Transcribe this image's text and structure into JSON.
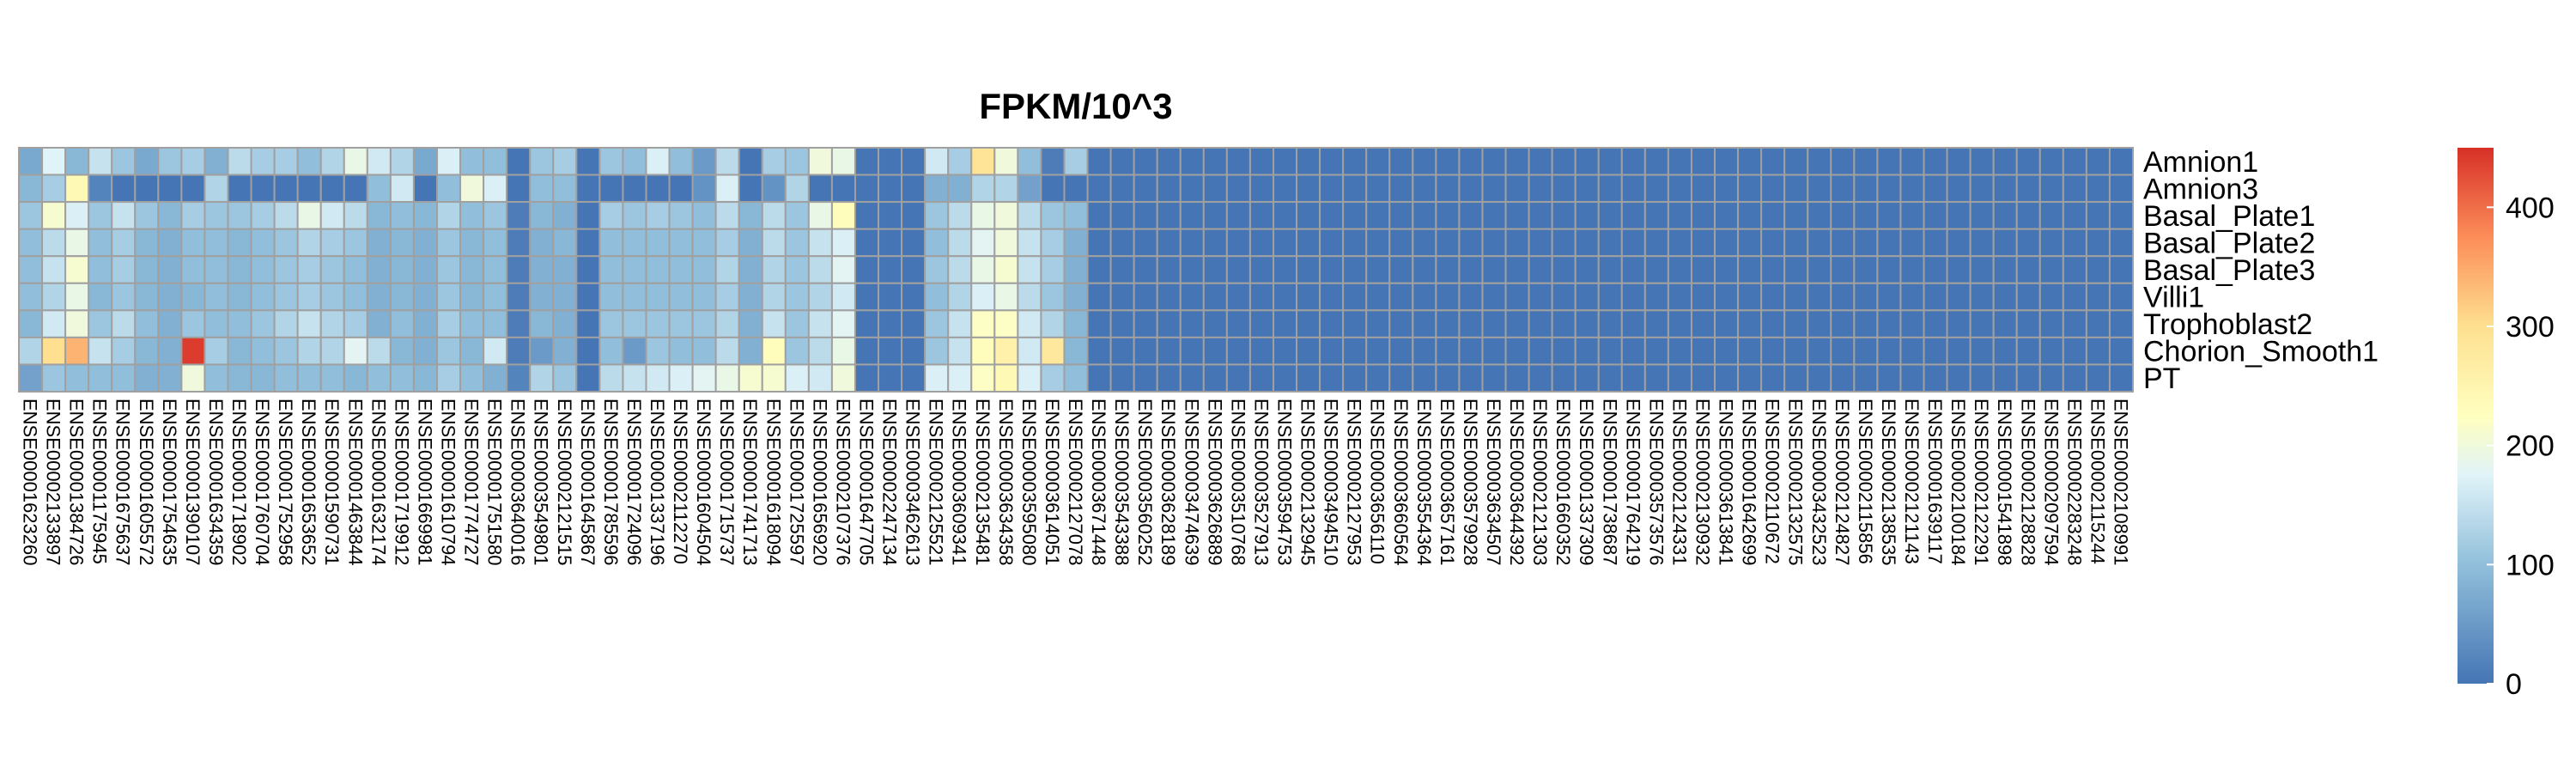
{
  "chart_data": {
    "type": "heatmap",
    "title": "FPKM/10^3",
    "rows": [
      "Amnion1",
      "Amnion3",
      "Basal_Plate1",
      "Basal_Plate2",
      "Basal_Plate3",
      "Villi1",
      "Trophoblast2",
      "Chorion_Smooth1",
      "PT"
    ],
    "columns": [
      "ENSE00001623260",
      "ENSE00002133897",
      "ENSE00001384726",
      "ENSE00001175945",
      "ENSE00001675637",
      "ENSE00001605572",
      "ENSE00001754635",
      "ENSE00001390107",
      "ENSE00001634359",
      "ENSE00001718902",
      "ENSE00001760704",
      "ENSE00001752958",
      "ENSE00001653652",
      "ENSE00001590731",
      "ENSE00001463844",
      "ENSE00001632174",
      "ENSE00001719912",
      "ENSE00001669981",
      "ENSE00001610794",
      "ENSE00001774727",
      "ENSE00001751580",
      "ENSE00003640016",
      "ENSE00003549801",
      "ENSE00002121515",
      "ENSE00001645867",
      "ENSE00001785596",
      "ENSE00001724096",
      "ENSE00001337196",
      "ENSE00002112270",
      "ENSE00001604504",
      "ENSE00001715737",
      "ENSE00001741713",
      "ENSE00001618094",
      "ENSE00001725597",
      "ENSE00001656920",
      "ENSE00002107376",
      "ENSE00001647705",
      "ENSE00002247134",
      "ENSE00003462613",
      "ENSE00002125521",
      "ENSE00003609341",
      "ENSE00002135481",
      "ENSE00003634358",
      "ENSE00003595080",
      "ENSE00003614051",
      "ENSE00002127078",
      "ENSE00003671448",
      "ENSE00003543388",
      "ENSE00003560252",
      "ENSE00003628189",
      "ENSE00003474639",
      "ENSE00003626889",
      "ENSE00003510768",
      "ENSE00003527913",
      "ENSE00003594753",
      "ENSE00002132945",
      "ENSE00003494510",
      "ENSE00002127953",
      "ENSE00003656110",
      "ENSE00003660564",
      "ENSE00003554364",
      "ENSE00003657161",
      "ENSE00003579928",
      "ENSE00003634507",
      "ENSE00003644392",
      "ENSE00002121303",
      "ENSE00001660352",
      "ENSE00001337309",
      "ENSE00001738687",
      "ENSE00001764219",
      "ENSE00003573576",
      "ENSE00002124331",
      "ENSE00002130932",
      "ENSE00003613841",
      "ENSE00001642699",
      "ENSE00002110672",
      "ENSE00002132575",
      "ENSE00003432523",
      "ENSE00002124827",
      "ENSE00002115856",
      "ENSE00002138535",
      "ENSE00002121143",
      "ENSE00001639117",
      "ENSE00002100184",
      "ENSE00002122291",
      "ENSE00001541898",
      "ENSE00002128828",
      "ENSE00002097594",
      "ENSE00002283248",
      "ENSE00002115244",
      "ENSE00002108991"
    ],
    "values": [
      [
        70,
        175,
        90,
        150,
        110,
        70,
        110,
        120,
        80,
        140,
        120,
        120,
        100,
        130,
        190,
        160,
        130,
        70,
        170,
        100,
        100,
        0,
        110,
        120,
        0,
        110,
        100,
        170,
        100,
        50,
        140,
        0,
        120,
        110,
        200,
        190,
        0,
        0,
        0,
        160,
        120,
        290,
        200,
        100,
        10,
        120,
        0,
        0,
        0,
        0,
        0,
        0,
        0,
        0,
        0,
        0,
        0,
        0,
        0,
        0,
        0,
        0,
        0,
        0,
        0,
        0,
        0,
        0,
        0,
        0,
        0,
        0,
        0,
        0,
        0,
        0,
        0,
        0,
        0,
        0,
        0,
        0,
        0,
        0,
        0,
        0,
        0,
        0,
        0,
        0,
        0
      ],
      [
        90,
        120,
        240,
        20,
        0,
        0,
        0,
        0,
        130,
        0,
        0,
        0,
        0,
        0,
        0,
        100,
        160,
        0,
        100,
        200,
        170,
        0,
        100,
        100,
        0,
        0,
        0,
        0,
        0,
        40,
        170,
        0,
        40,
        130,
        0,
        0,
        0,
        0,
        0,
        80,
        80,
        130,
        130,
        60,
        0,
        0,
        0,
        0,
        0,
        0,
        0,
        0,
        0,
        0,
        0,
        0,
        0,
        0,
        0,
        0,
        0,
        0,
        0,
        0,
        0,
        0,
        0,
        0,
        0,
        0,
        0,
        0,
        0,
        0,
        0,
        0,
        0,
        0,
        0,
        0,
        0,
        0,
        0,
        0,
        0,
        0,
        0,
        0,
        0,
        0,
        0
      ],
      [
        110,
        210,
        170,
        110,
        150,
        110,
        90,
        120,
        110,
        110,
        120,
        140,
        190,
        160,
        140,
        90,
        100,
        90,
        130,
        100,
        110,
        10,
        90,
        80,
        0,
        120,
        110,
        120,
        110,
        100,
        140,
        90,
        140,
        110,
        190,
        230,
        0,
        0,
        0,
        110,
        140,
        190,
        200,
        140,
        110,
        100,
        0,
        0,
        0,
        0,
        0,
        0,
        0,
        0,
        0,
        0,
        0,
        0,
        0,
        0,
        0,
        0,
        0,
        0,
        0,
        0,
        0,
        0,
        0,
        0,
        0,
        0,
        0,
        0,
        0,
        0,
        0,
        0,
        0,
        0,
        0,
        0,
        0,
        0,
        0,
        0,
        0,
        0,
        0,
        0,
        0
      ],
      [
        100,
        140,
        190,
        100,
        120,
        90,
        80,
        100,
        100,
        90,
        100,
        110,
        130,
        120,
        110,
        80,
        90,
        80,
        110,
        90,
        100,
        10,
        80,
        90,
        0,
        100,
        100,
        100,
        100,
        100,
        120,
        80,
        140,
        110,
        150,
        170,
        0,
        0,
        0,
        100,
        140,
        180,
        200,
        150,
        120,
        80,
        0,
        0,
        0,
        0,
        0,
        0,
        0,
        0,
        0,
        0,
        0,
        0,
        0,
        0,
        0,
        0,
        0,
        0,
        0,
        0,
        0,
        0,
        0,
        0,
        0,
        0,
        0,
        0,
        0,
        0,
        0,
        0,
        0,
        0,
        0,
        0,
        0,
        0,
        0,
        0,
        0,
        0,
        0,
        0,
        0
      ],
      [
        100,
        150,
        210,
        100,
        120,
        90,
        80,
        100,
        100,
        90,
        100,
        110,
        120,
        110,
        100,
        80,
        90,
        80,
        110,
        90,
        100,
        10,
        80,
        80,
        0,
        100,
        100,
        100,
        100,
        100,
        130,
        80,
        130,
        110,
        140,
        180,
        0,
        0,
        0,
        110,
        140,
        190,
        210,
        150,
        120,
        80,
        0,
        0,
        0,
        0,
        0,
        0,
        0,
        0,
        0,
        0,
        0,
        0,
        0,
        0,
        0,
        0,
        0,
        0,
        0,
        0,
        0,
        0,
        0,
        0,
        0,
        0,
        0,
        0,
        0,
        0,
        0,
        0,
        0,
        0,
        0,
        0,
        0,
        0,
        0,
        0,
        0,
        0,
        0,
        0,
        0
      ],
      [
        100,
        130,
        190,
        90,
        110,
        90,
        80,
        90,
        100,
        90,
        100,
        110,
        120,
        110,
        100,
        80,
        90,
        80,
        110,
        90,
        100,
        10,
        80,
        80,
        0,
        100,
        100,
        100,
        100,
        100,
        120,
        80,
        130,
        110,
        130,
        160,
        0,
        0,
        0,
        100,
        130,
        170,
        190,
        140,
        110,
        80,
        0,
        0,
        0,
        0,
        0,
        0,
        0,
        0,
        0,
        0,
        0,
        0,
        0,
        0,
        0,
        0,
        0,
        0,
        0,
        0,
        0,
        0,
        0,
        0,
        0,
        0,
        0,
        0,
        0,
        0,
        0,
        0,
        0,
        0,
        0,
        0,
        0,
        0,
        0,
        0,
        0,
        0,
        0,
        0,
        0
      ],
      [
        90,
        160,
        200,
        110,
        140,
        100,
        80,
        110,
        100,
        100,
        110,
        130,
        150,
        130,
        120,
        80,
        100,
        80,
        120,
        100,
        100,
        10,
        90,
        80,
        0,
        110,
        110,
        110,
        110,
        110,
        130,
        80,
        150,
        110,
        150,
        180,
        0,
        0,
        0,
        110,
        150,
        220,
        220,
        160,
        130,
        90,
        0,
        0,
        0,
        0,
        0,
        0,
        0,
        0,
        0,
        0,
        0,
        0,
        0,
        0,
        0,
        0,
        0,
        0,
        0,
        0,
        0,
        0,
        0,
        0,
        0,
        0,
        0,
        0,
        0,
        0,
        0,
        0,
        0,
        0,
        0,
        0,
        0,
        0,
        0,
        0,
        0,
        0,
        0,
        0,
        0
      ],
      [
        130,
        300,
        340,
        150,
        120,
        90,
        80,
        440,
        120,
        90,
        100,
        110,
        130,
        130,
        180,
        140,
        90,
        80,
        110,
        90,
        160,
        10,
        50,
        80,
        0,
        100,
        50,
        110,
        100,
        100,
        140,
        80,
        230,
        110,
        140,
        190,
        0,
        0,
        0,
        110,
        150,
        230,
        260,
        160,
        280,
        90,
        0,
        0,
        0,
        0,
        0,
        0,
        0,
        0,
        0,
        0,
        0,
        0,
        0,
        0,
        0,
        0,
        0,
        0,
        0,
        0,
        0,
        0,
        0,
        0,
        0,
        0,
        0,
        0,
        0,
        0,
        0,
        0,
        0,
        0,
        0,
        0,
        0,
        0,
        0,
        0,
        0,
        0,
        0,
        0,
        0
      ],
      [
        60,
        110,
        100,
        100,
        100,
        80,
        80,
        200,
        100,
        90,
        90,
        100,
        100,
        100,
        90,
        100,
        100,
        90,
        120,
        100,
        80,
        20,
        130,
        110,
        0,
        140,
        150,
        160,
        170,
        180,
        190,
        210,
        210,
        170,
        160,
        200,
        0,
        0,
        0,
        170,
        170,
        220,
        240,
        170,
        120,
        100,
        0,
        0,
        0,
        0,
        0,
        0,
        0,
        0,
        0,
        0,
        0,
        0,
        0,
        0,
        0,
        0,
        0,
        0,
        0,
        0,
        0,
        0,
        0,
        0,
        0,
        0,
        0,
        0,
        0,
        0,
        0,
        0,
        0,
        0,
        0,
        0,
        0,
        0,
        0,
        0,
        0,
        0,
        0,
        0,
        0
      ]
    ],
    "colorscale": {
      "min": 0,
      "max": 450,
      "stops": [
        {
          "value": 0,
          "color": "#4575b4"
        },
        {
          "value": 100,
          "color": "#91bfdb"
        },
        {
          "value": 175,
          "color": "#e0f3f8"
        },
        {
          "value": 225,
          "color": "#ffffbf"
        },
        {
          "value": 300,
          "color": "#fee090"
        },
        {
          "value": 375,
          "color": "#fc8d59"
        },
        {
          "value": 450,
          "color": "#d73027"
        }
      ]
    },
    "legend": {
      "ticks": [
        0,
        100,
        200,
        300,
        400
      ],
      "tick_labels": [
        "0",
        "100",
        "200",
        "300",
        "400"
      ],
      "placement": "right"
    },
    "cell_border_color": "#a0a0a0"
  }
}
